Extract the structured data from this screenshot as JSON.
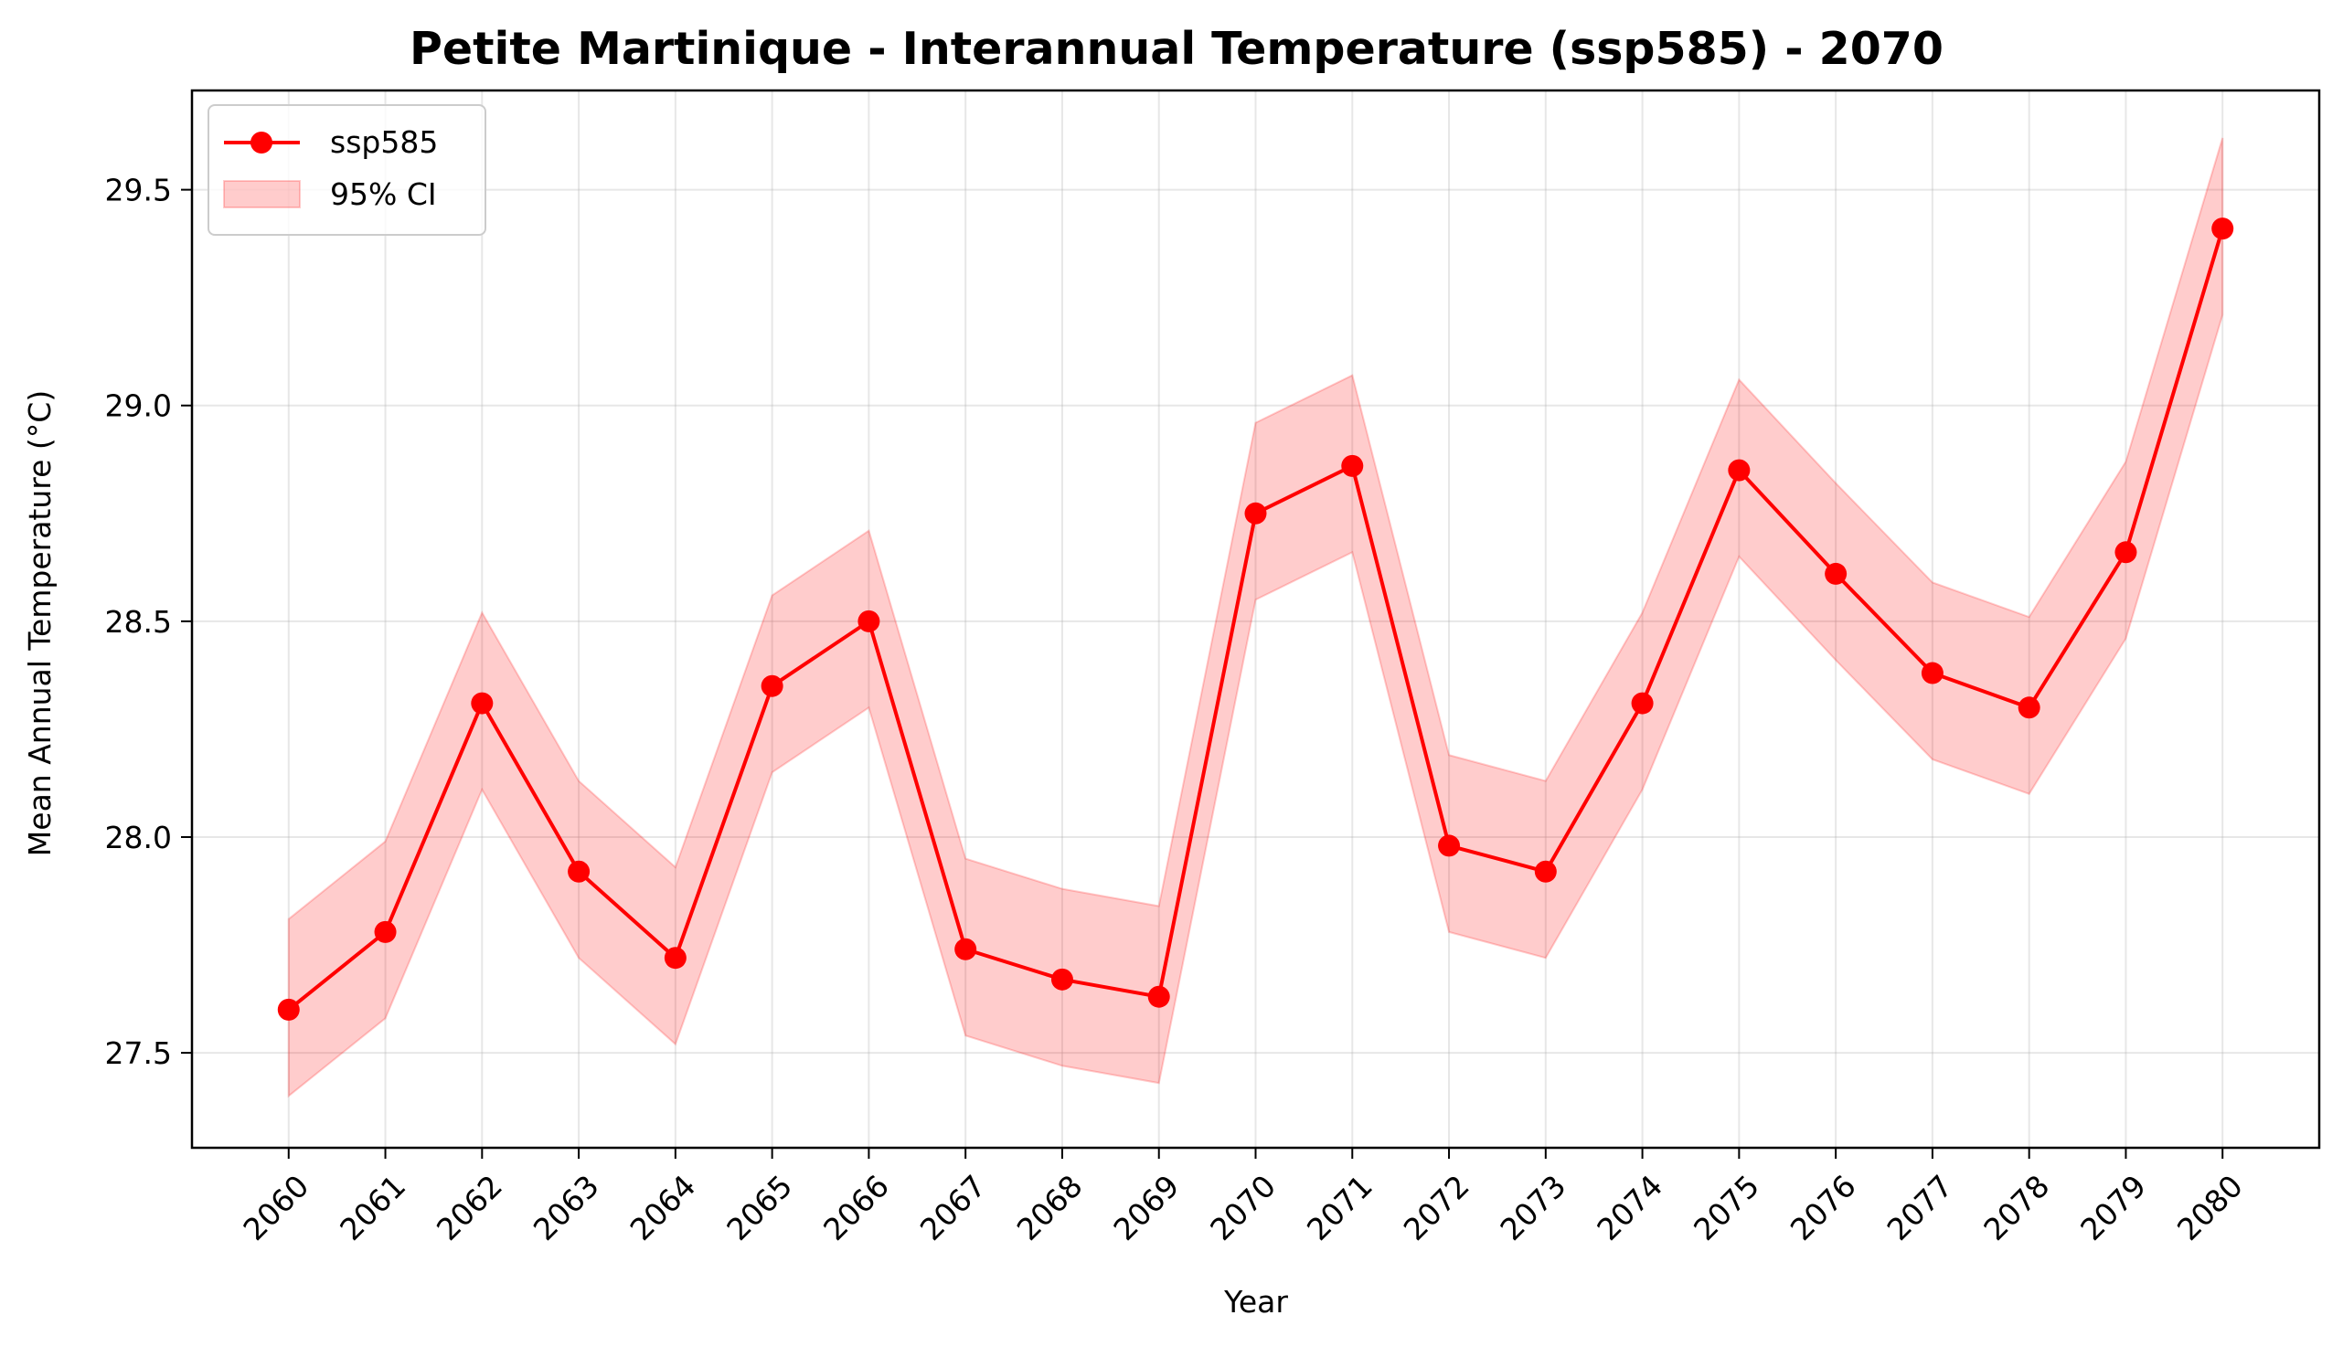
{
  "chart_data": {
    "type": "line",
    "title": "Petite Martinique - Interannual Temperature (ssp585) - 2070",
    "xlabel": "Year",
    "ylabel": "Mean Annual Temperature (°C)",
    "x": [
      2060,
      2061,
      2062,
      2063,
      2064,
      2065,
      2066,
      2067,
      2068,
      2069,
      2070,
      2071,
      2072,
      2073,
      2074,
      2075,
      2076,
      2077,
      2078,
      2079,
      2080
    ],
    "series": [
      {
        "name": "ssp585",
        "color": "#ff0000",
        "marker": "circle",
        "values": [
          27.6,
          27.78,
          28.31,
          27.92,
          27.72,
          28.35,
          28.5,
          27.74,
          27.67,
          27.63,
          28.75,
          28.86,
          27.98,
          27.92,
          28.31,
          28.85,
          28.61,
          28.38,
          28.3,
          28.66,
          29.41
        ]
      }
    ],
    "ci": {
      "name": "95% CI",
      "color": "#ff0000",
      "lower": [
        27.4,
        27.58,
        28.11,
        27.72,
        27.52,
        28.15,
        28.3,
        27.54,
        27.47,
        27.43,
        28.55,
        28.66,
        27.78,
        27.72,
        28.11,
        28.65,
        28.41,
        28.18,
        28.1,
        28.46,
        29.21
      ],
      "upper": [
        27.81,
        27.99,
        28.52,
        28.13,
        27.93,
        28.56,
        28.71,
        27.95,
        27.88,
        27.84,
        28.96,
        29.07,
        28.19,
        28.13,
        28.52,
        29.06,
        28.82,
        28.59,
        28.51,
        28.87,
        29.62
      ]
    },
    "yticks": [
      "27.5",
      "28.0",
      "28.5",
      "29.0",
      "29.5"
    ],
    "ylim": [
      27.28,
      29.73
    ],
    "xlim": [
      2059,
      2081
    ],
    "grid": true,
    "legend_position": "top-left"
  }
}
